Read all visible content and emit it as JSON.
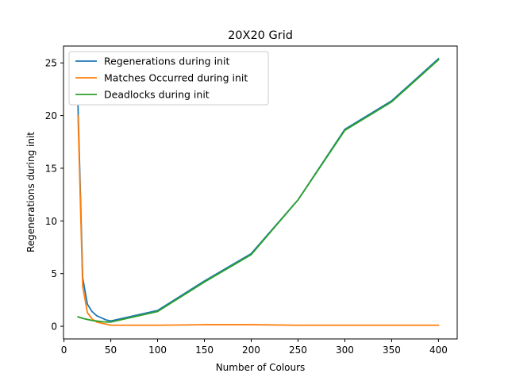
{
  "chart_data": {
    "type": "line",
    "title": "20X20 Grid",
    "xlabel": "Number of Colours",
    "ylabel": "Regenerations during init",
    "xlim": [
      -0.5,
      420
    ],
    "ylim": [
      -1.2,
      26.6
    ],
    "xticks": [
      0,
      50,
      100,
      150,
      200,
      250,
      300,
      350,
      400
    ],
    "yticks": [
      0,
      5,
      10,
      15,
      20,
      25
    ],
    "grid": false,
    "legend_position": "top-left",
    "series": [
      {
        "name": "Regenerations during init",
        "color": "#1f77b4",
        "x": [
          15,
          20,
          25,
          30,
          35,
          40,
          45,
          50,
          100,
          150,
          200,
          250,
          300,
          350,
          400
        ],
        "y": [
          20.9,
          4.6,
          2.1,
          1.4,
          1.0,
          0.8,
          0.6,
          0.5,
          1.5,
          4.3,
          6.9,
          12.0,
          18.7,
          21.4,
          25.4
        ]
      },
      {
        "name": "Matches Occurred during init",
        "color": "#ff7f0e",
        "x": [
          15,
          20,
          25,
          30,
          35,
          40,
          45,
          50,
          100,
          150,
          200,
          250,
          300,
          350,
          400
        ],
        "y": [
          20.0,
          3.8,
          1.3,
          0.7,
          0.4,
          0.3,
          0.2,
          0.1,
          0.1,
          0.15,
          0.15,
          0.1,
          0.1,
          0.1,
          0.1
        ]
      },
      {
        "name": "Deadlocks during init",
        "color": "#2ca02c",
        "x": [
          15,
          20,
          25,
          30,
          35,
          40,
          45,
          50,
          100,
          150,
          200,
          250,
          300,
          350,
          400
        ],
        "y": [
          0.9,
          0.75,
          0.65,
          0.55,
          0.5,
          0.45,
          0.4,
          0.4,
          1.4,
          4.2,
          6.8,
          12.0,
          18.6,
          21.3,
          25.3
        ]
      }
    ]
  }
}
